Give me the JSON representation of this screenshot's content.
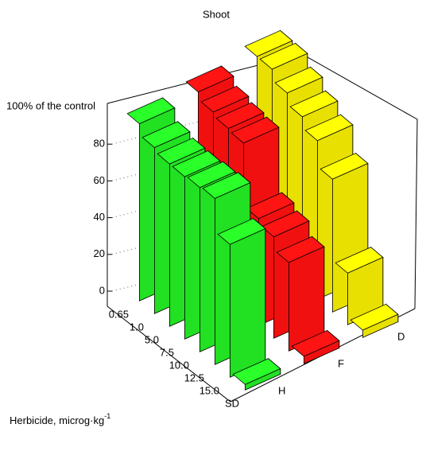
{
  "chart_data": {
    "type": "bar3d",
    "title": "Shoot",
    "zlabel": "100% of the control",
    "xlabel": "Herbicide, microg·kg",
    "xlabel_sup": "-1",
    "categories": [
      "0.65",
      "1.0",
      "5.0",
      "7.5",
      "10.0",
      "12.5",
      "15.0",
      "SD"
    ],
    "series": [
      {
        "name": "H",
        "color": "#22e022",
        "values": [
          96,
          90,
          88,
          88,
          89,
          90,
          72,
          3
        ]
      },
      {
        "name": "F",
        "color": "#f01010",
        "values": [
          99,
          95,
          93,
          92,
          58,
          55,
          48,
          4
        ]
      },
      {
        "name": "D",
        "color": "#e8e000",
        "values": [
          104,
          104,
          98,
          92,
          86,
          72,
          28,
          4
        ]
      }
    ],
    "zlim": [
      0,
      100
    ],
    "zticks": [
      0,
      20,
      40,
      60,
      80
    ],
    "grid": true
  }
}
